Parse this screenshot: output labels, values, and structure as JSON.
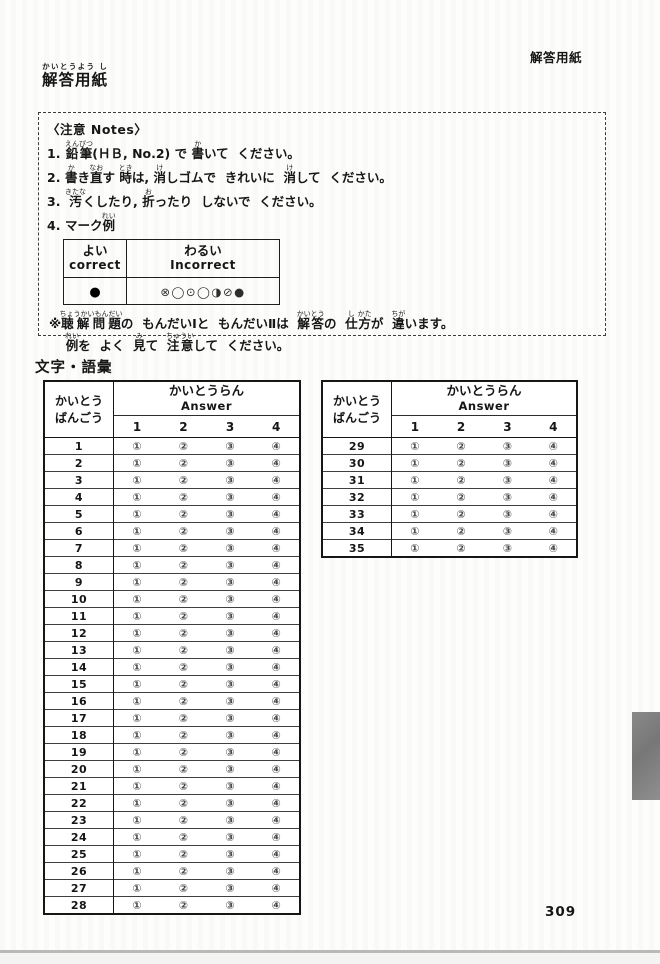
{
  "page": {
    "corner_label": "解答用紙",
    "page_number": "309"
  },
  "title": {
    "text": "解答用紙",
    "furigana": "かいとうよう し"
  },
  "notes": {
    "heading": "〈注意 Notes〉",
    "items": [
      {
        "num": "1.",
        "segments": [
          {
            "t": "鉛筆",
            "r": "えんぴつ"
          },
          {
            "t": "(ＨＢ, No.2) で "
          },
          {
            "t": "書",
            "r": "か"
          },
          {
            "t": "いて  ください。"
          }
        ]
      },
      {
        "num": "2.",
        "segments": [
          {
            "t": "書",
            "r": "か"
          },
          {
            "t": "き"
          },
          {
            "t": "直",
            "r": "なお"
          },
          {
            "t": "す "
          },
          {
            "t": "時",
            "r": "とき"
          },
          {
            "t": "は, "
          },
          {
            "t": "消",
            "r": "け"
          },
          {
            "t": "しゴムで  きれいに  "
          },
          {
            "t": "消",
            "r": "け"
          },
          {
            "t": "して  ください。"
          }
        ]
      },
      {
        "num": "3.",
        "segments": [
          {
            "t": "汚",
            "r": "きたな"
          },
          {
            "t": "くしたり, "
          },
          {
            "t": "折",
            "r": "お"
          },
          {
            "t": "ったり  しないで  ください。"
          }
        ]
      },
      {
        "num": "4.",
        "segments": [
          {
            "t": "マーク"
          },
          {
            "t": "例",
            "r": "れい"
          }
        ]
      }
    ],
    "footnote": [
      {
        "prefix": "※",
        "indent": false,
        "segments": [
          {
            "t": "聴解問題",
            "r": "ちょうかいもんだい"
          },
          {
            "t": "の  もんだいⅠと  もんだいⅡは  "
          },
          {
            "t": "解答",
            "r": "かいとう"
          },
          {
            "t": "の  "
          },
          {
            "t": "仕",
            "r": "し"
          },
          {
            "t": "方",
            "r": "かた"
          },
          {
            "t": "が  "
          },
          {
            "t": "違",
            "r": "ちが"
          },
          {
            "t": "います。"
          }
        ]
      },
      {
        "prefix": "",
        "indent": true,
        "segments": [
          {
            "t": "例",
            "r": "れい"
          },
          {
            "t": "を  よく  "
          },
          {
            "t": "見",
            "r": "み"
          },
          {
            "t": "て  "
          },
          {
            "t": "注意",
            "r": "ちゅうい"
          },
          {
            "t": "して  ください。"
          }
        ]
      }
    ]
  },
  "mark_example": {
    "good_label": "よい",
    "good_sub": "correct",
    "bad_label": "わるい",
    "bad_sub": "Incorrect",
    "good_mark": "●",
    "bad_marks": [
      "⊗",
      "◯",
      "⊙",
      "◯",
      "◑",
      "⊘",
      "●"
    ]
  },
  "section_title": "文字・語彙",
  "answer_tables": {
    "header_left_line1": "かいとう",
    "header_left_line2": "ばんごう",
    "header_answer_jp": "かいとうらん",
    "header_answer_en": "Answer",
    "choice_headers": [
      "1",
      "2",
      "3",
      "4"
    ],
    "choice_glyphs": [
      "①",
      "②",
      "③",
      "④"
    ],
    "left_rows": [
      "1",
      "2",
      "3",
      "4",
      "5",
      "6",
      "7",
      "8",
      "9",
      "10",
      "11",
      "12",
      "13",
      "14",
      "15",
      "16",
      "17",
      "18",
      "19",
      "20",
      "21",
      "22",
      "23",
      "24",
      "25",
      "26",
      "27",
      "28"
    ],
    "right_rows": [
      "29",
      "30",
      "31",
      "32",
      "33",
      "34",
      "35"
    ]
  }
}
